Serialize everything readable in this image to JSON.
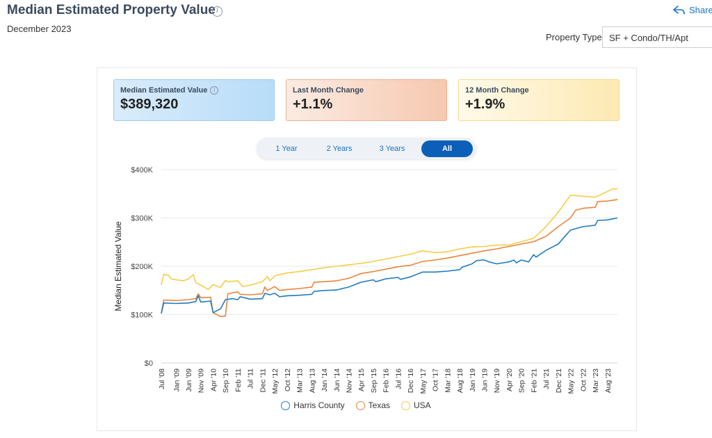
{
  "header": {
    "title": "Median Estimated Property Value",
    "subtitle": "December 2023",
    "share_label": "Share"
  },
  "filters": {
    "property_type_label": "Property Type",
    "property_type_value": "SF + Condo/TH/Apt"
  },
  "cards": [
    {
      "label": "Median Estimated Value",
      "value": "$389,320"
    },
    {
      "label": "Last Month Change",
      "value": "+1.1%"
    },
    {
      "label": "12 Month Change",
      "value": "+1.9%"
    }
  ],
  "range_buttons": [
    "1 Year",
    "2 Years",
    "3 Years",
    "All"
  ],
  "active_range": "All",
  "colors": {
    "harris": "#1f7bc1",
    "texas": "#e8843c",
    "usa": "#f6cd45"
  },
  "chart_data": {
    "type": "line",
    "ylabel": "Median Estimated Value",
    "xlabel": "",
    "ylim": [
      0,
      400000
    ],
    "yticks": [
      "$0",
      "$100K",
      "$200K",
      "$300K",
      "$400K"
    ],
    "yticks_values": [
      0,
      100000,
      200000,
      300000,
      400000
    ],
    "xticks": [
      "Jul '08",
      "Jan '09",
      "Jun '09",
      "Nov '09",
      "Apr '10",
      "Sep '10",
      "Feb '11",
      "Jul '11",
      "Dec '11",
      "May '12",
      "Oct '12",
      "Mar '13",
      "Aug '13",
      "Jan '14",
      "Jun '14",
      "Nov '14",
      "Apr '15",
      "Sep '15",
      "Feb '16",
      "Jul '16",
      "Dec '16",
      "May '17",
      "Oct '17",
      "Mar '18",
      "Aug '18",
      "Jan '19",
      "Jun '19",
      "Nov '19",
      "Apr '20",
      "Sep '20",
      "Feb '21",
      "Jul '21",
      "Dec '21",
      "May '22",
      "Oct '22",
      "Mar '23",
      "Aug '23"
    ],
    "grid": true,
    "legend_position": "bottom",
    "series": [
      {
        "name": "Harris County",
        "color": "#1f7bc1",
        "points": [
          [
            "Jul '08",
            102000
          ],
          [
            "Aug '08",
            124000
          ],
          [
            "Jan '09",
            123000
          ],
          [
            "Jun '09",
            124000
          ],
          [
            "Sep '09",
            127000
          ],
          [
            "Oct '09",
            139000
          ],
          [
            "Nov '09",
            126000
          ],
          [
            "Mar '10",
            128000
          ],
          [
            "Apr '10",
            104000
          ],
          [
            "Jul '10",
            112000
          ],
          [
            "Sep '10",
            131000
          ],
          [
            "Dec '10",
            133000
          ],
          [
            "Feb '11",
            131000
          ],
          [
            "Mar '11",
            137000
          ],
          [
            "Jul '11",
            132000
          ],
          [
            "Dec '11",
            133000
          ],
          [
            "Jan '12",
            144000
          ],
          [
            "Mar '12",
            141000
          ],
          [
            "May '12",
            144000
          ],
          [
            "Jul '12",
            137000
          ],
          [
            "Oct '12",
            139000
          ],
          [
            "Mar '13",
            140000
          ],
          [
            "Aug '13",
            142000
          ],
          [
            "Sep '13",
            148000
          ],
          [
            "Jan '14",
            150000
          ],
          [
            "Jun '14",
            151000
          ],
          [
            "Nov '14",
            157000
          ],
          [
            "Apr '15",
            167000
          ],
          [
            "Sep '15",
            172000
          ],
          [
            "Oct '15",
            168000
          ],
          [
            "Feb '16",
            174000
          ],
          [
            "Jul '16",
            177000
          ],
          [
            "Aug '16",
            173000
          ],
          [
            "Dec '16",
            178000
          ],
          [
            "May '17",
            188000
          ],
          [
            "Oct '17",
            188000
          ],
          [
            "Mar '18",
            190000
          ],
          [
            "Aug '18",
            193000
          ],
          [
            "Sep '18",
            198000
          ],
          [
            "Jan '19",
            205000
          ],
          [
            "Mar '19",
            212000
          ],
          [
            "Jun '19",
            213000
          ],
          [
            "Aug '19",
            209000
          ],
          [
            "Nov '19",
            205000
          ],
          [
            "Apr '20",
            209000
          ],
          [
            "Jun '20",
            213000
          ],
          [
            "Jul '20",
            207000
          ],
          [
            "Sep '20",
            213000
          ],
          [
            "Dec '20",
            209000
          ],
          [
            "Feb '21",
            224000
          ],
          [
            "Mar '21",
            219000
          ],
          [
            "Jul '21",
            233000
          ],
          [
            "Dec '21",
            246000
          ],
          [
            "Feb '22",
            258000
          ],
          [
            "May '22",
            275000
          ],
          [
            "Oct '22",
            282000
          ],
          [
            "Mar '23",
            285000
          ],
          [
            "Apr '23",
            295000
          ],
          [
            "Aug '23",
            296000
          ],
          [
            "Dec '23",
            300000
          ]
        ]
      },
      {
        "name": "Texas",
        "color": "#e8843c",
        "points": [
          [
            "Jul '08",
            103000
          ],
          [
            "Aug '08",
            130000
          ],
          [
            "Jan '09",
            129000
          ],
          [
            "Jun '09",
            131000
          ],
          [
            "Sep '09",
            133000
          ],
          [
            "Oct '09",
            143000
          ],
          [
            "Nov '09",
            135000
          ],
          [
            "Mar '10",
            136000
          ],
          [
            "Apr '10",
            104000
          ],
          [
            "Jul '10",
            96000
          ],
          [
            "Sep '10",
            97000
          ],
          [
            "Oct '10",
            143000
          ],
          [
            "Feb '11",
            147000
          ],
          [
            "Mar '11",
            142000
          ],
          [
            "Jul '11",
            141000
          ],
          [
            "Dec '11",
            143000
          ],
          [
            "Jan '12",
            157000
          ],
          [
            "Feb '12",
            150000
          ],
          [
            "May '12",
            158000
          ],
          [
            "Jul '12",
            150000
          ],
          [
            "Oct '12",
            152000
          ],
          [
            "Mar '13",
            154000
          ],
          [
            "Aug '13",
            157000
          ],
          [
            "Sep '13",
            167000
          ],
          [
            "Jan '14",
            168000
          ],
          [
            "Jun '14",
            170000
          ],
          [
            "Nov '14",
            175000
          ],
          [
            "Apr '15",
            185000
          ],
          [
            "Sep '15",
            189000
          ],
          [
            "Feb '16",
            194000
          ],
          [
            "Jul '16",
            199000
          ],
          [
            "Dec '16",
            202000
          ],
          [
            "May '17",
            210000
          ],
          [
            "Oct '17",
            213000
          ],
          [
            "Mar '18",
            217000
          ],
          [
            "Aug '18",
            222000
          ],
          [
            "Jan '19",
            227000
          ],
          [
            "Jun '19",
            232000
          ],
          [
            "Nov '19",
            236000
          ],
          [
            "Apr '20",
            241000
          ],
          [
            "Sep '20",
            246000
          ],
          [
            "Feb '21",
            251000
          ],
          [
            "Jul '21",
            262000
          ],
          [
            "Dec '21",
            282000
          ],
          [
            "May '22",
            300000
          ],
          [
            "Jul '22",
            316000
          ],
          [
            "Oct '22",
            320000
          ],
          [
            "Mar '23",
            322000
          ],
          [
            "Apr '23",
            334000
          ],
          [
            "Aug '23",
            335000
          ],
          [
            "Dec '23",
            338000
          ]
        ]
      },
      {
        "name": "USA",
        "color": "#f6cd45",
        "points": [
          [
            "Jul '08",
            162000
          ],
          [
            "Aug '08",
            183000
          ],
          [
            "Oct '08",
            181000
          ],
          [
            "Nov '08",
            174000
          ],
          [
            "Jan '09",
            172000
          ],
          [
            "Apr '09",
            170000
          ],
          [
            "Jun '09",
            174000
          ],
          [
            "Aug '09",
            183000
          ],
          [
            "Sep '09",
            166000
          ],
          [
            "Nov '09",
            161000
          ],
          [
            "Feb '10",
            152000
          ],
          [
            "Apr '10",
            162000
          ],
          [
            "Jul '10",
            156000
          ],
          [
            "Sep '10",
            171000
          ],
          [
            "Oct '10",
            168000
          ],
          [
            "Feb '11",
            170000
          ],
          [
            "Apr '11",
            158000
          ],
          [
            "Jul '11",
            161000
          ],
          [
            "Dec '11",
            168000
          ],
          [
            "Feb '12",
            179000
          ],
          [
            "Mar '12",
            170000
          ],
          [
            "May '12",
            180000
          ],
          [
            "Jul '12",
            183000
          ],
          [
            "Oct '12",
            186000
          ],
          [
            "Mar '13",
            189000
          ],
          [
            "Aug '13",
            193000
          ],
          [
            "Jan '14",
            197000
          ],
          [
            "Jun '14",
            200000
          ],
          [
            "Nov '14",
            203000
          ],
          [
            "Apr '15",
            206000
          ],
          [
            "Sep '15",
            210000
          ],
          [
            "Feb '16",
            215000
          ],
          [
            "Jul '16",
            220000
          ],
          [
            "Dec '16",
            225000
          ],
          [
            "May '17",
            232000
          ],
          [
            "Oct '17",
            228000
          ],
          [
            "Mar '18",
            230000
          ],
          [
            "Aug '18",
            236000
          ],
          [
            "Jan '19",
            240000
          ],
          [
            "Jun '19",
            241000
          ],
          [
            "Nov '19",
            244000
          ],
          [
            "Apr '20",
            244000
          ],
          [
            "Sep '20",
            251000
          ],
          [
            "Feb '21",
            258000
          ],
          [
            "Jul '21",
            282000
          ],
          [
            "Dec '21",
            312000
          ],
          [
            "May '22",
            347000
          ],
          [
            "Oct '22",
            345000
          ],
          [
            "Mar '23",
            343000
          ],
          [
            "Aug '23",
            355000
          ],
          [
            "Oct '23",
            360000
          ],
          [
            "Dec '23",
            360000
          ]
        ]
      }
    ]
  }
}
